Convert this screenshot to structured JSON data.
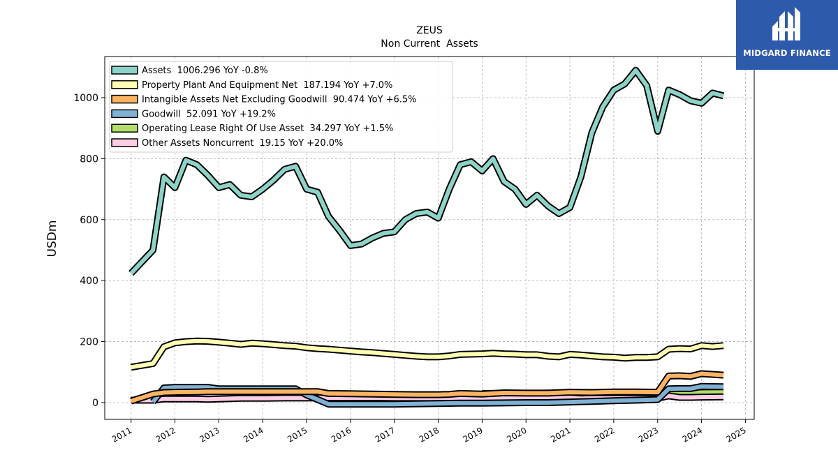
{
  "logo": {
    "text": "MIDGARD FINANCE",
    "bg_color": "#2e5aac"
  },
  "chart_data": {
    "type": "line",
    "title": "ZEUS",
    "subtitle": "Non Current  Assets",
    "xlabel": "",
    "ylabel": "USDm",
    "xlim": [
      2010.4,
      2025.2
    ],
    "ylim": [
      -55,
      1135
    ],
    "xticks": [
      "2011",
      "2012",
      "2013",
      "2014",
      "2015",
      "2016",
      "2017",
      "2018",
      "2019",
      "2020",
      "2021",
      "2022",
      "2023",
      "2024",
      "2025"
    ],
    "yticks": [
      0,
      200,
      400,
      600,
      800,
      1000
    ],
    "grid": true,
    "legend_position": "top-left",
    "series": [
      {
        "name": "Assets",
        "legend": "Assets  1006.296 YoY -0.8%",
        "color": "#8dd3c7",
        "x": [
          2011.0,
          2011.5,
          2011.75,
          2012.0,
          2012.25,
          2012.5,
          2012.75,
          2013.0,
          2013.25,
          2013.5,
          2013.75,
          2014.0,
          2014.25,
          2014.5,
          2014.75,
          2015.0,
          2015.25,
          2015.5,
          2015.75,
          2016.0,
          2016.25,
          2016.5,
          2016.75,
          2017.0,
          2017.25,
          2017.5,
          2017.75,
          2018.0,
          2018.25,
          2018.5,
          2018.75,
          2019.0,
          2019.25,
          2019.5,
          2019.75,
          2020.0,
          2020.25,
          2020.5,
          2020.75,
          2021.0,
          2021.25,
          2021.5,
          2021.75,
          2022.0,
          2022.25,
          2022.5,
          2022.75,
          2023.0,
          2023.25,
          2023.5,
          2023.75,
          2024.0,
          2024.25,
          2024.5
        ],
        "values": [
          424,
          500,
          740,
          705,
          795,
          780,
          745,
          705,
          715,
          680,
          675,
          700,
          730,
          765,
          775,
          700,
          690,
          610,
          565,
          515,
          520,
          540,
          555,
          560,
          600,
          620,
          625,
          605,
          700,
          780,
          790,
          760,
          800,
          725,
          700,
          650,
          680,
          645,
          620,
          640,
          740,
          885,
          970,
          1025,
          1045,
          1090,
          1040,
          890,
          1025,
          1010,
          990,
          982,
          1015,
          1006
        ]
      },
      {
        "name": "Property Plant And Equipment Net",
        "legend": "Property Plant And Equipment Net  187.194 YoY +7.0%",
        "color": "#ffffb3",
        "x": [
          2011.0,
          2011.5,
          2011.75,
          2012.0,
          2012.25,
          2012.5,
          2012.75,
          2013.0,
          2013.25,
          2013.5,
          2013.75,
          2014.0,
          2014.25,
          2014.5,
          2014.75,
          2015.0,
          2015.25,
          2015.5,
          2015.75,
          2016.0,
          2016.25,
          2016.5,
          2016.75,
          2017.0,
          2017.25,
          2017.5,
          2017.75,
          2018.0,
          2018.25,
          2018.5,
          2018.75,
          2019.0,
          2019.25,
          2019.5,
          2019.75,
          2020.0,
          2020.25,
          2020.5,
          2020.75,
          2021.0,
          2021.25,
          2021.5,
          2021.75,
          2022.0,
          2022.25,
          2022.5,
          2022.75,
          2023.0,
          2023.25,
          2023.5,
          2023.75,
          2024.0,
          2024.25,
          2024.5
        ],
        "values": [
          116,
          128,
          183,
          196,
          200,
          202,
          201,
          198,
          195,
          191,
          195,
          193,
          190,
          187,
          185,
          180,
          177,
          175,
          172,
          169,
          166,
          164,
          161,
          158,
          155,
          152,
          150,
          150,
          153,
          158,
          159,
          160,
          162,
          160,
          159,
          157,
          157,
          152,
          150,
          158,
          156,
          153,
          150,
          149,
          146,
          148,
          148,
          150,
          175,
          177,
          176,
          187,
          184,
          187
        ]
      },
      {
        "name": "Intangible Assets Net Excluding Goodwill",
        "legend": "Intangible Assets Net Excluding Goodwill  90.474 YoY +6.5%",
        "color": "#fdb462",
        "x": [
          2011.0,
          2011.5,
          2011.75,
          2012.0,
          2012.5,
          2012.75,
          2013.0,
          2013.5,
          2014.0,
          2014.5,
          2015.0,
          2015.25,
          2015.5,
          2016.0,
          2016.5,
          2017.0,
          2017.5,
          2018.0,
          2018.25,
          2018.5,
          2019.0,
          2019.5,
          2020.0,
          2020.5,
          2021.0,
          2021.5,
          2022.0,
          2022.5,
          2023.0,
          2023.25,
          2023.5,
          2023.75,
          2024.0,
          2024.5
        ],
        "values": [
          5,
          28,
          33,
          34,
          35,
          36,
          36,
          36,
          36,
          36,
          36,
          36,
          30,
          29,
          28,
          27,
          26,
          26,
          27,
          30,
          28,
          32,
          31,
          31,
          34,
          33,
          35,
          35,
          34,
          87,
          88,
          86,
          95,
          90
        ]
      },
      {
        "name": "Goodwill",
        "legend": "Goodwill  52.091 YoY +19.2%",
        "color": "#80b1d3",
        "x": [
          2011.5,
          2011.75,
          2012.0,
          2012.5,
          2012.75,
          2013.0,
          2013.5,
          2014.0,
          2014.5,
          2014.75,
          2015.0,
          2015.5,
          2016.0,
          2016.5,
          2017.0,
          2017.5,
          2018.0,
          2018.5,
          2019.0,
          2019.5,
          2020.0,
          2020.5,
          2021.0,
          2021.5,
          2022.0,
          2022.5,
          2023.0,
          2023.25,
          2023.5,
          2023.75,
          2024.0,
          2024.5
        ],
        "values": [
          2,
          48,
          50,
          50,
          50,
          45,
          45,
          45,
          45,
          45,
          25,
          -5,
          -5,
          -5,
          -5,
          -4,
          -3,
          -2,
          -2,
          -1,
          0,
          0,
          2,
          4,
          6,
          8,
          10,
          45,
          46,
          46,
          53,
          52
        ]
      },
      {
        "name": "Operating Lease Right Of Use Asset",
        "legend": "Operating Lease Right Of Use Asset  34.297 YoY +1.5%",
        "color": "#b3de69",
        "x": [
          2019.0,
          2019.5,
          2020.0,
          2020.5,
          2021.0,
          2021.5,
          2022.0,
          2022.5,
          2023.0,
          2023.25,
          2023.5,
          2023.75,
          2024.0,
          2024.5
        ],
        "values": [
          30,
          30,
          30,
          31,
          28,
          27,
          28,
          27,
          27,
          33,
          33,
          32,
          33,
          34
        ]
      },
      {
        "name": "Other Assets Noncurrent",
        "legend": "Other Assets Noncurrent  19.15 YoY +20.0%",
        "color": "#fccde5",
        "x": [
          2011.0,
          2011.5,
          2011.75,
          2012.0,
          2012.5,
          2012.75,
          2013.0,
          2013.5,
          2014.0,
          2014.5,
          2015.0,
          2015.5,
          2016.0,
          2016.5,
          2017.0,
          2017.5,
          2018.0,
          2018.5,
          2019.0,
          2019.5,
          2020.0,
          2020.5,
          2021.0,
          2021.25,
          2021.5,
          2022.0,
          2022.5,
          2023.0,
          2023.25,
          2023.5,
          2023.75,
          2024.0,
          2024.5
        ],
        "values": [
          8,
          8,
          12,
          12,
          12,
          11,
          12,
          14,
          14,
          15,
          15,
          16,
          16,
          16,
          15,
          15,
          15,
          15,
          15,
          15,
          15,
          16,
          16,
          13,
          14,
          14,
          14,
          14,
          22,
          17,
          17,
          18,
          19
        ]
      }
    ]
  }
}
